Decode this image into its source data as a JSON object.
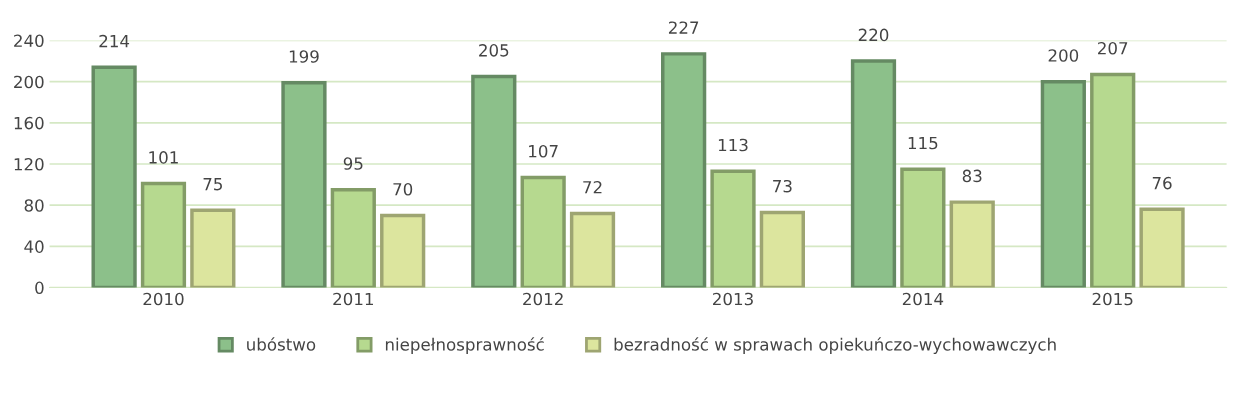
{
  "chart_data": {
    "type": "bar",
    "categories": [
      "2010",
      "2011",
      "2012",
      "2013",
      "2014",
      "2015"
    ],
    "series": [
      {
        "name": "ubóstwo",
        "color": "#8cc08a",
        "values": [
          214,
          199,
          205,
          227,
          220,
          200
        ]
      },
      {
        "name": "niepełnosprawność",
        "color": "#b6d98f",
        "values": [
          101,
          95,
          107,
          113,
          115,
          207
        ]
      },
      {
        "name": "bezradność w sprawach opiekuńczo-wychowawczych",
        "color": "#dce59e",
        "values": [
          75,
          70,
          72,
          73,
          83,
          76
        ]
      }
    ],
    "ylim": [
      0,
      240
    ],
    "yticks": [
      0,
      40,
      80,
      120,
      160,
      200,
      240
    ],
    "grid": "y",
    "legend": "bottom",
    "data_labels": true
  }
}
